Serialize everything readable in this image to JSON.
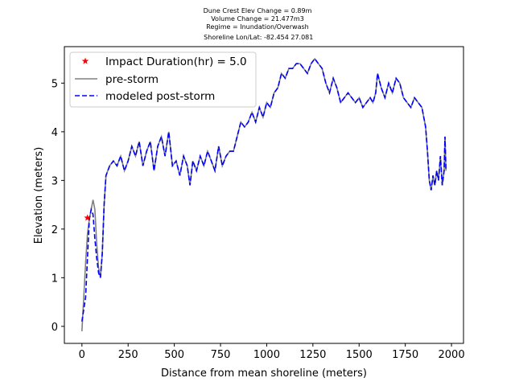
{
  "chart_data": {
    "type": "line",
    "title_lines": [
      "Dune Crest Elev Change = 0.89m",
      "Volume Change = 21.477m3",
      "Regime = Inundation/Overwash",
      " Shoreline Lon/Lat: -82.454 27.081"
    ],
    "xlabel": "Distance from mean shoreline (meters)",
    "ylabel": "Elevation (meters)",
    "xlim": [
      -95,
      2065
    ],
    "ylim": [
      -0.35,
      5.75
    ],
    "xticks": [
      0,
      250,
      500,
      750,
      1000,
      1250,
      1500,
      1750,
      2000
    ],
    "yticks": [
      0,
      1,
      2,
      3,
      4,
      5
    ],
    "legend_position": "upper-left",
    "colors": {
      "pre_storm": "#808080",
      "post_storm": "#0000ff",
      "marker": "#ff0000"
    },
    "series": [
      {
        "name": "Impact Duration(hr) = 5.0",
        "kind": "marker",
        "x": [
          30
        ],
        "y": [
          2.23
        ]
      },
      {
        "name": "pre-storm",
        "kind": "line",
        "x": [
          0,
          10,
          20,
          30,
          40,
          50,
          60,
          70,
          80,
          90,
          100,
          110,
          120,
          130,
          150,
          170,
          190,
          210,
          230,
          250,
          270,
          290,
          310,
          330,
          350,
          370,
          390,
          410,
          430,
          450,
          470,
          490,
          510,
          530,
          550,
          570,
          585,
          600,
          620,
          640,
          660,
          680,
          700,
          720,
          740,
          760,
          780,
          800,
          820,
          840,
          860,
          880,
          900,
          920,
          940,
          960,
          980,
          1000,
          1020,
          1040,
          1060,
          1080,
          1100,
          1120,
          1140,
          1160,
          1180,
          1200,
          1220,
          1240,
          1260,
          1280,
          1300,
          1320,
          1340,
          1360,
          1380,
          1400,
          1420,
          1440,
          1460,
          1480,
          1500,
          1520,
          1540,
          1560,
          1575,
          1590,
          1600,
          1620,
          1640,
          1660,
          1680,
          1700,
          1720,
          1740,
          1760,
          1780,
          1800,
          1820,
          1840,
          1860,
          1870,
          1880,
          1890,
          1900,
          1910,
          1920,
          1930,
          1940,
          1950,
          1960,
          1965,
          1970
        ],
        "y": [
          -0.1,
          0.6,
          1.3,
          1.9,
          2.2,
          2.4,
          2.6,
          2.4,
          1.7,
          1.2,
          1.0,
          1.5,
          2.5,
          3.1,
          3.3,
          3.4,
          3.3,
          3.5,
          3.2,
          3.4,
          3.7,
          3.5,
          3.8,
          3.3,
          3.6,
          3.8,
          3.2,
          3.7,
          3.9,
          3.5,
          4.0,
          3.3,
          3.4,
          3.1,
          3.5,
          3.3,
          2.9,
          3.4,
          3.2,
          3.5,
          3.3,
          3.6,
          3.4,
          3.2,
          3.7,
          3.3,
          3.5,
          3.6,
          3.6,
          3.9,
          4.2,
          4.1,
          4.2,
          4.4,
          4.2,
          4.5,
          4.3,
          4.6,
          4.5,
          4.8,
          4.9,
          5.2,
          5.1,
          5.3,
          5.3,
          5.4,
          5.4,
          5.3,
          5.2,
          5.4,
          5.5,
          5.4,
          5.3,
          5.0,
          4.8,
          5.1,
          4.9,
          4.6,
          4.7,
          4.8,
          4.7,
          4.6,
          4.7,
          4.5,
          4.6,
          4.7,
          4.6,
          4.8,
          5.2,
          4.9,
          4.7,
          5.0,
          4.8,
          5.1,
          5.0,
          4.7,
          4.6,
          4.5,
          4.7,
          4.6,
          4.5,
          4.1,
          3.6,
          3.0,
          2.8,
          3.1,
          2.9,
          3.2,
          3.0,
          3.5,
          2.9,
          3.2,
          3.9,
          3.2
        ]
      },
      {
        "name": "modeled post-storm",
        "kind": "line",
        "x": [
          0,
          10,
          20,
          30,
          40,
          50,
          60,
          70,
          80,
          90,
          100,
          110,
          120,
          130,
          150,
          170,
          190,
          210,
          230,
          250,
          270,
          290,
          310,
          330,
          350,
          370,
          390,
          410,
          430,
          450,
          470,
          490,
          510,
          530,
          550,
          570,
          585,
          600,
          620,
          640,
          660,
          680,
          700,
          720,
          740,
          760,
          780,
          800,
          820,
          840,
          860,
          880,
          900,
          920,
          940,
          960,
          980,
          1000,
          1020,
          1040,
          1060,
          1080,
          1100,
          1120,
          1140,
          1160,
          1180,
          1200,
          1220,
          1240,
          1260,
          1280,
          1300,
          1320,
          1340,
          1360,
          1380,
          1400,
          1420,
          1440,
          1460,
          1480,
          1500,
          1520,
          1540,
          1560,
          1575,
          1590,
          1600,
          1620,
          1640,
          1660,
          1680,
          1700,
          1720,
          1740,
          1760,
          1780,
          1800,
          1820,
          1840,
          1860,
          1870,
          1880,
          1890,
          1900,
          1910,
          1920,
          1930,
          1940,
          1950,
          1960,
          1965,
          1970
        ],
        "y": [
          0.1,
          0.35,
          0.6,
          1.4,
          2.2,
          2.4,
          2.3,
          1.8,
          1.4,
          1.1,
          1.0,
          1.5,
          2.5,
          3.1,
          3.3,
          3.4,
          3.3,
          3.5,
          3.2,
          3.4,
          3.7,
          3.5,
          3.8,
          3.3,
          3.6,
          3.8,
          3.2,
          3.7,
          3.9,
          3.5,
          4.0,
          3.3,
          3.4,
          3.1,
          3.5,
          3.3,
          2.9,
          3.4,
          3.2,
          3.5,
          3.3,
          3.6,
          3.4,
          3.2,
          3.7,
          3.3,
          3.5,
          3.6,
          3.6,
          3.9,
          4.2,
          4.1,
          4.2,
          4.4,
          4.2,
          4.5,
          4.3,
          4.6,
          4.5,
          4.8,
          4.9,
          5.2,
          5.1,
          5.3,
          5.3,
          5.4,
          5.4,
          5.3,
          5.2,
          5.4,
          5.5,
          5.4,
          5.3,
          5.0,
          4.8,
          5.1,
          4.9,
          4.6,
          4.7,
          4.8,
          4.7,
          4.6,
          4.7,
          4.5,
          4.6,
          4.7,
          4.6,
          4.8,
          5.2,
          4.9,
          4.7,
          5.0,
          4.8,
          5.1,
          5.0,
          4.7,
          4.6,
          4.5,
          4.7,
          4.6,
          4.5,
          4.1,
          3.6,
          3.0,
          2.8,
          3.1,
          2.9,
          3.2,
          3.0,
          3.5,
          2.9,
          3.2,
          3.9,
          3.2
        ]
      }
    ]
  }
}
